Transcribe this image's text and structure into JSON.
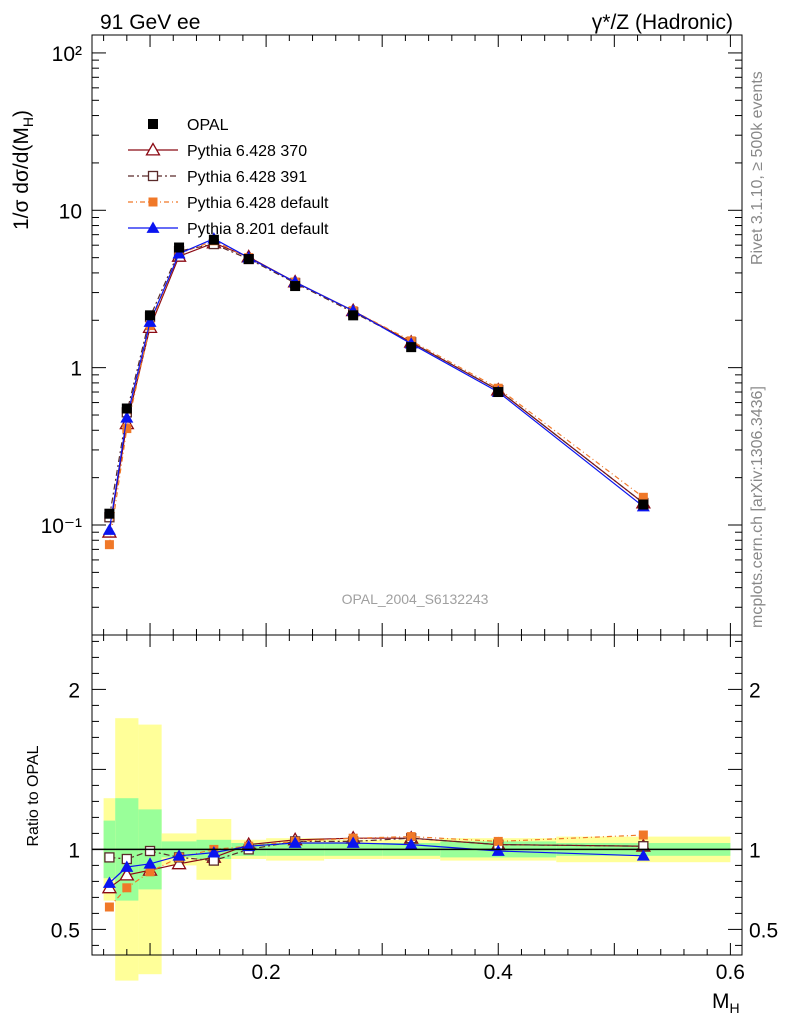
{
  "header": {
    "left": "91 GeV ee",
    "right": "γ*/Z (Hadronic)"
  },
  "side_text": {
    "top": "Rivet 3.1.10, ≥ 500k events",
    "bottom": "mcplots.cern.ch [arXiv:1306.3436]"
  },
  "watermark": "OPAL_2004_S6132243",
  "chart_data": {
    "type": "line",
    "title": "91 GeV ee — γ*/Z (Hadronic)",
    "xlabel": "M_H",
    "ylabel": "1/σ dσ/d(M_H)",
    "ratio_ylabel": "Ratio to OPAL",
    "xlim": [
      0.05,
      0.61
    ],
    "ylim": [
      0.02,
      130
    ],
    "ratio_ylim": [
      0.34,
      2.34
    ],
    "xticks": [
      {
        "v": 0.2,
        "label": "0.2"
      },
      {
        "v": 0.4,
        "label": "0.4"
      },
      {
        "v": 0.6,
        "label": "0.6"
      }
    ],
    "yticks": [
      {
        "v": 0.1,
        "label": "10⁻¹"
      },
      {
        "v": 1,
        "label": "1"
      },
      {
        "v": 10,
        "label": "10"
      },
      {
        "v": 100,
        "label": "10²"
      }
    ],
    "ratio_yticks": [
      {
        "v": 0.5,
        "label": "0.5"
      },
      {
        "v": 1,
        "label": "1"
      },
      {
        "v": 2,
        "label": "2"
      }
    ],
    "x": [
      0.065,
      0.08,
      0.1,
      0.125,
      0.155,
      0.185,
      0.225,
      0.275,
      0.325,
      0.4,
      0.525
    ],
    "data": {
      "name": "OPAL",
      "values": [
        0.118,
        0.55,
        2.15,
        5.8,
        6.5,
        4.9,
        3.3,
        2.15,
        1.35,
        0.7,
        0.135
      ],
      "bin_edges": [
        0.06,
        0.07,
        0.09,
        0.11,
        0.14,
        0.17,
        0.2,
        0.25,
        0.3,
        0.35,
        0.45,
        0.6
      ]
    },
    "uncertainty_bands": {
      "green": [
        0.18,
        0.32,
        0.25,
        0.05,
        0.06,
        0.04,
        0.04,
        0.04,
        0.04,
        0.05,
        0.04
      ],
      "yellow": [
        0.32,
        0.82,
        0.78,
        0.1,
        0.19,
        0.06,
        0.07,
        0.06,
        0.06,
        0.07,
        0.08
      ]
    },
    "series": [
      {
        "name": "Pythia 6.428 370",
        "color": "#8b0a14",
        "marker": "triangle-open",
        "dash": "",
        "values": [
          0.09,
          0.44,
          1.8,
          5.1,
          6.2,
          5.05,
          3.5,
          2.3,
          1.45,
          0.72,
          0.138
        ],
        "ratio": [
          0.76,
          0.84,
          0.87,
          0.91,
          0.95,
          1.03,
          1.06,
          1.07,
          1.07,
          1.03,
          1.02
        ]
      },
      {
        "name": "Pythia 6.428 391",
        "color": "#5a2a2a",
        "marker": "square-open",
        "dash": "6,3,2,3",
        "values": [
          0.112,
          0.52,
          2.1,
          5.5,
          6.1,
          4.9,
          3.45,
          2.25,
          1.45,
          0.72,
          0.138
        ],
        "ratio": [
          0.95,
          0.94,
          0.99,
          0.95,
          0.93,
          1.0,
          1.05,
          1.05,
          1.07,
          1.03,
          1.02
        ]
      },
      {
        "name": "Pythia 6.428 default",
        "color": "#f07828",
        "marker": "square",
        "dash": "5,3,1,3",
        "values": [
          0.075,
          0.41,
          1.85,
          5.3,
          6.4,
          5.0,
          3.5,
          2.3,
          1.48,
          0.74,
          0.15
        ],
        "ratio": [
          0.64,
          0.76,
          0.86,
          0.95,
          1.0,
          1.02,
          1.05,
          1.07,
          1.08,
          1.05,
          1.09
        ]
      },
      {
        "name": "Pythia 8.201 default",
        "color": "#0a14f0",
        "marker": "triangle",
        "dash": "",
        "values": [
          0.093,
          0.48,
          1.95,
          5.3,
          6.6,
          5.0,
          3.5,
          2.3,
          1.42,
          0.7,
          0.131
        ],
        "ratio": [
          0.79,
          0.89,
          0.91,
          0.96,
          0.98,
          1.02,
          1.04,
          1.04,
          1.03,
          0.99,
          0.96
        ]
      }
    ]
  }
}
